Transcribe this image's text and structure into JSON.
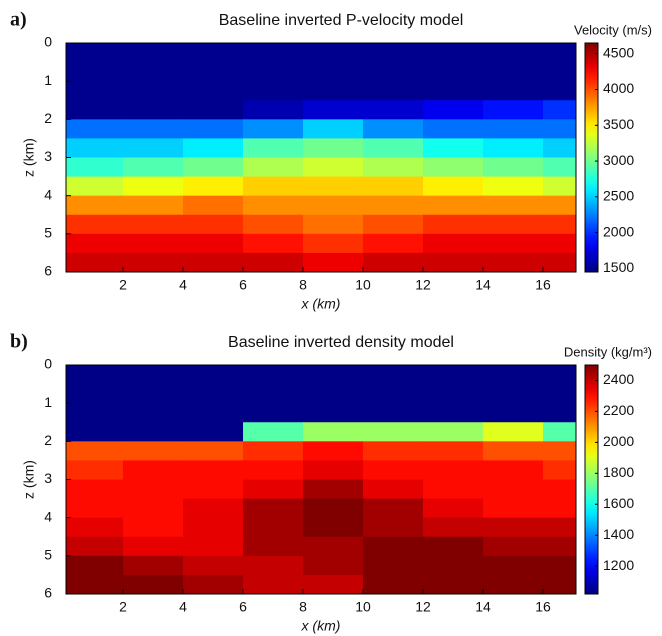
{
  "chart_data": [
    {
      "type": "heatmap",
      "panel_label": "a)",
      "title": "Baseline inverted P-velocity model",
      "xlabel": "x (km)",
      "ylabel": "z (km)",
      "colorbar_label": "Velocity (m/s)",
      "xlim": [
        0.1,
        17.1
      ],
      "ylim": [
        0,
        6
      ],
      "y_inverted": true,
      "xticks": [
        2,
        4,
        6,
        8,
        10,
        12,
        14,
        16
      ],
      "yticks": [
        0,
        1,
        2,
        3,
        4,
        5,
        6
      ],
      "clim": [
        1450,
        4650
      ],
      "colorbar_ticks": [
        1500,
        2000,
        2500,
        3000,
        3500,
        4000,
        4500
      ],
      "colormap": "jet",
      "x": [
        1,
        3,
        5,
        7,
        9,
        11,
        13,
        15,
        17
      ],
      "z": [
        0.25,
        0.75,
        1.25,
        1.75,
        2.25,
        2.75,
        3.25,
        3.75,
        4.25,
        4.75,
        5.25,
        5.75
      ],
      "values": [
        [
          1500,
          1500,
          1500,
          1500,
          1500,
          1500,
          1500,
          1500,
          1500
        ],
        [
          1500,
          1500,
          1500,
          1500,
          1500,
          1500,
          1500,
          1500,
          1500
        ],
        [
          1500,
          1500,
          1500,
          1500,
          1500,
          1500,
          1500,
          1500,
          1500
        ],
        [
          1500,
          1500,
          1500,
          1600,
          1700,
          1700,
          1800,
          1900,
          2000
        ],
        [
          2200,
          2200,
          2200,
          2300,
          2500,
          2300,
          2200,
          2200,
          2200
        ],
        [
          2500,
          2500,
          2600,
          2900,
          3000,
          2900,
          2700,
          2600,
          2500
        ],
        [
          2800,
          2900,
          3000,
          3200,
          3300,
          3200,
          3100,
          3000,
          2900
        ],
        [
          3300,
          3400,
          3500,
          3600,
          3600,
          3600,
          3500,
          3400,
          3300
        ],
        [
          3800,
          3800,
          3900,
          3800,
          3800,
          3800,
          3800,
          3800,
          3800
        ],
        [
          4100,
          4100,
          4100,
          4000,
          3900,
          4000,
          4100,
          4100,
          4100
        ],
        [
          4300,
          4300,
          4300,
          4200,
          4100,
          4200,
          4300,
          4300,
          4300
        ],
        [
          4400,
          4400,
          4400,
          4400,
          4300,
          4400,
          4400,
          4400,
          4400
        ]
      ]
    },
    {
      "type": "heatmap",
      "panel_label": "b)",
      "title": "Baseline inverted density model",
      "xlabel": "x (km)",
      "ylabel": "z (km)",
      "colorbar_label": "Density (kg/m³)",
      "xlim": [
        0.1,
        17.1
      ],
      "ylim": [
        0,
        6
      ],
      "y_inverted": true,
      "xticks": [
        2,
        4,
        6,
        8,
        10,
        12,
        14,
        16
      ],
      "yticks": [
        0,
        1,
        2,
        3,
        4,
        5,
        6
      ],
      "clim": [
        1020,
        2500
      ],
      "colorbar_ticks": [
        1200,
        1400,
        1600,
        1800,
        2000,
        2200,
        2400
      ],
      "colormap": "jet",
      "x": [
        1,
        3,
        5,
        7,
        9,
        11,
        13,
        15,
        17
      ],
      "z": [
        0.25,
        0.75,
        1.25,
        1.75,
        2.25,
        2.75,
        3.25,
        3.75,
        4.25,
        4.75,
        5.25,
        5.75
      ],
      "values": [
        [
          1030,
          1030,
          1030,
          1030,
          1030,
          1030,
          1030,
          1030,
          1030
        ],
        [
          1030,
          1030,
          1030,
          1030,
          1030,
          1030,
          1030,
          1030,
          1030
        ],
        [
          1030,
          1030,
          1030,
          1030,
          1030,
          1030,
          1030,
          1030,
          1030
        ],
        [
          1030,
          1030,
          1030,
          1700,
          1800,
          1800,
          1800,
          1900,
          1700
        ],
        [
          2200,
          2200,
          2200,
          2250,
          2300,
          2250,
          2250,
          2200,
          2200
        ],
        [
          2250,
          2300,
          2300,
          2300,
          2350,
          2300,
          2300,
          2300,
          2250
        ],
        [
          2300,
          2300,
          2300,
          2350,
          2450,
          2350,
          2300,
          2300,
          2300
        ],
        [
          2300,
          2300,
          2350,
          2450,
          2500,
          2450,
          2350,
          2300,
          2300
        ],
        [
          2350,
          2300,
          2350,
          2450,
          2500,
          2450,
          2400,
          2400,
          2400
        ],
        [
          2400,
          2350,
          2350,
          2450,
          2450,
          2500,
          2500,
          2450,
          2450
        ],
        [
          2500,
          2450,
          2400,
          2400,
          2450,
          2500,
          2500,
          2500,
          2500
        ],
        [
          2500,
          2500,
          2450,
          2400,
          2400,
          2500,
          2500,
          2500,
          2500
        ]
      ]
    }
  ]
}
